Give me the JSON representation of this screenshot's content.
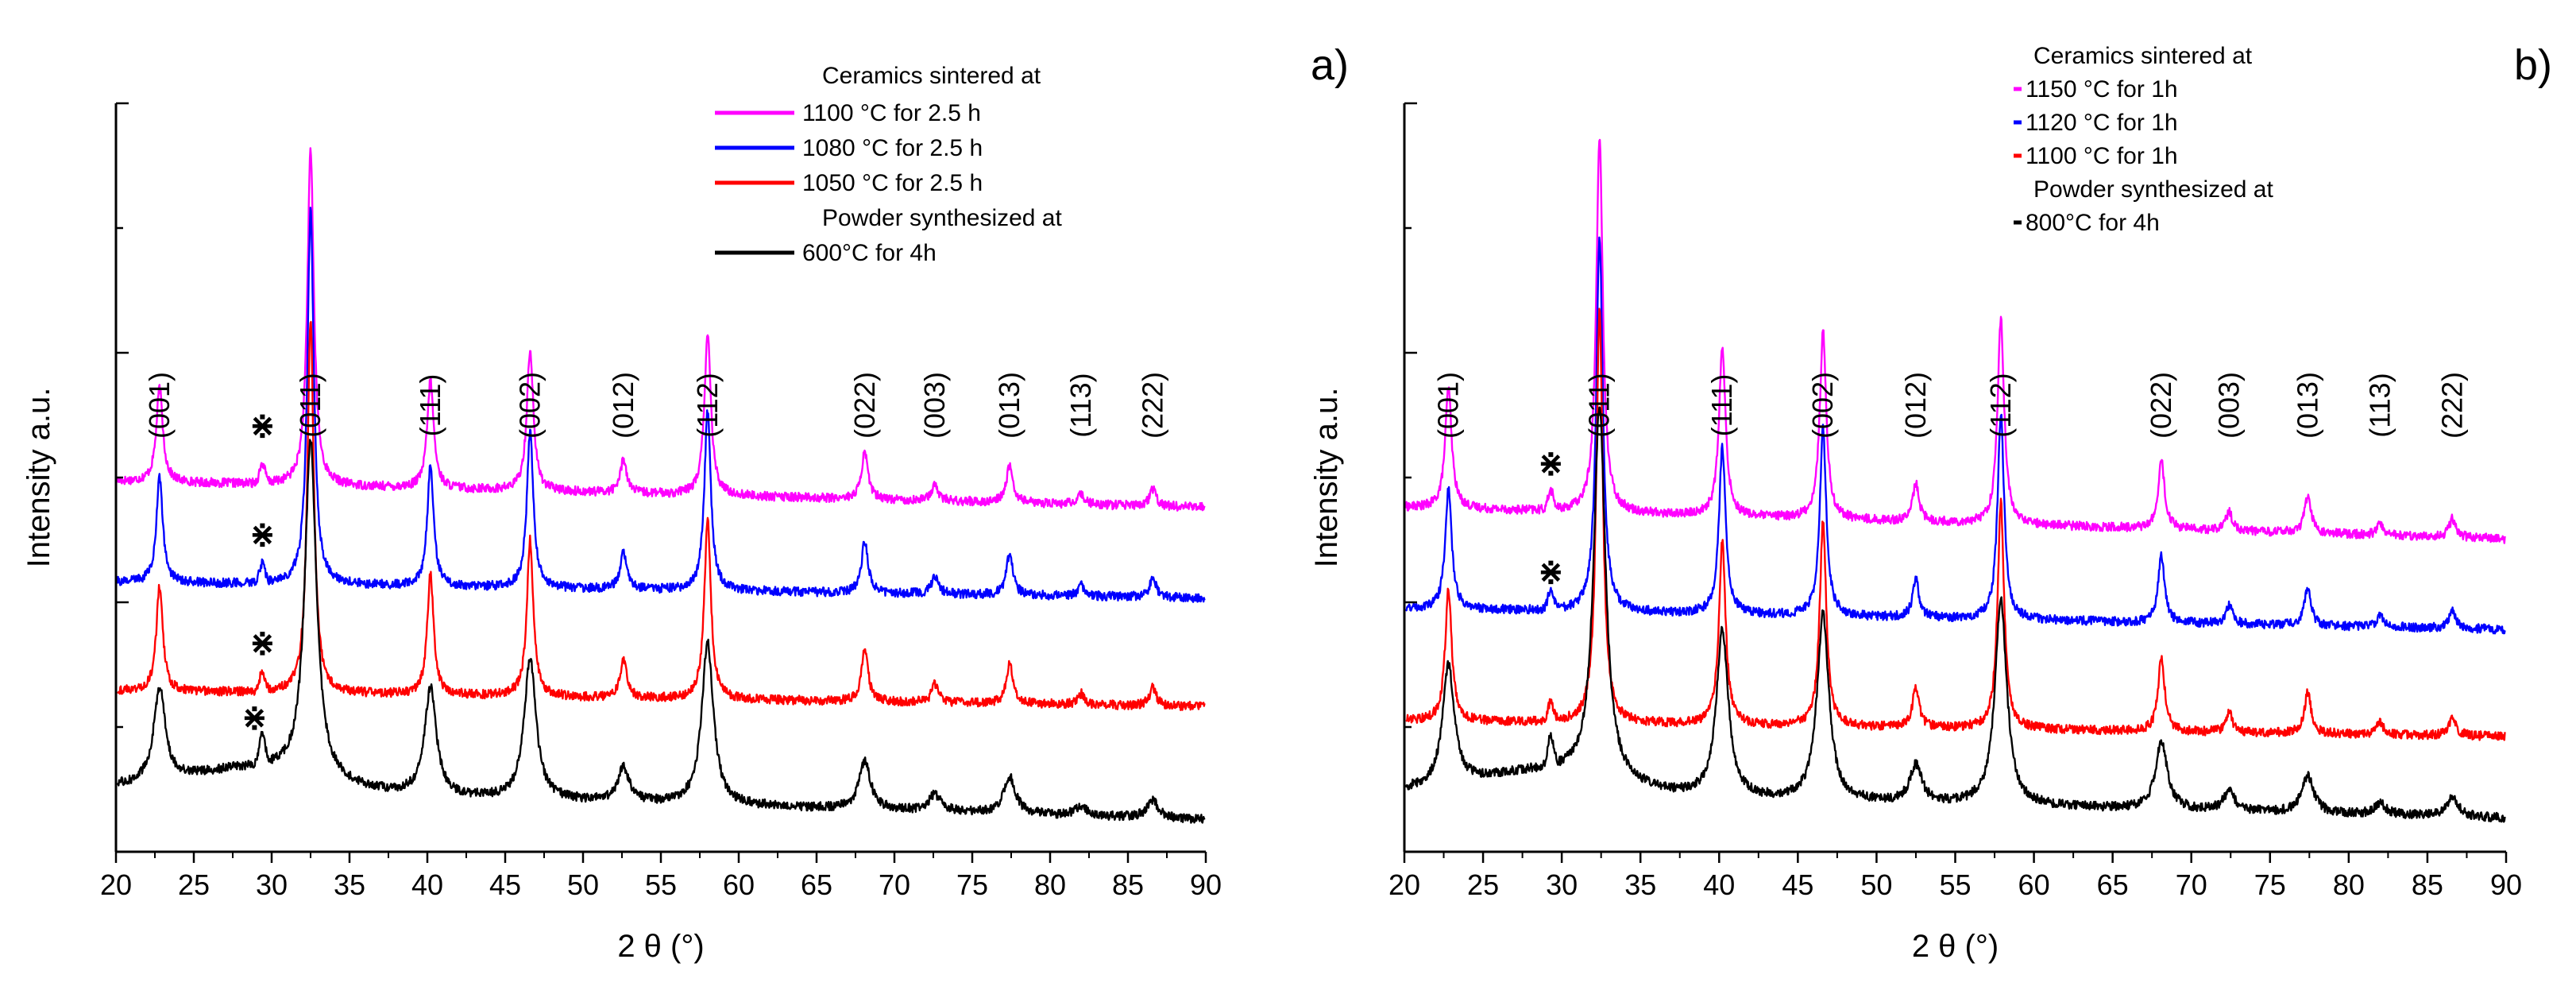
{
  "chart_data": [
    {
      "type": "line",
      "panel_label": "a)",
      "xlabel": "2 θ (°)",
      "ylabel": "Intensity a.u.",
      "xlim": [
        20,
        90
      ],
      "xticks": [
        20,
        25,
        30,
        35,
        40,
        45,
        50,
        55,
        60,
        65,
        70,
        75,
        80,
        85,
        90
      ],
      "legend": {
        "header_sintered": "Ceramics sintered at",
        "header_powder": "Powder synthesized at"
      },
      "peaks": [
        {
          "hkl": "(001)",
          "x": 22.8,
          "rel": 0.28
        },
        {
          "hkl": "(011)",
          "x": 32.5,
          "rel": 1.0
        },
        {
          "hkl": "(111)",
          "x": 40.2,
          "rel": 0.32
        },
        {
          "hkl": "(002)",
          "x": 46.6,
          "rel": 0.42
        },
        {
          "hkl": "(012)",
          "x": 52.6,
          "rel": 0.1
        },
        {
          "hkl": "(112)",
          "x": 58.0,
          "rel": 0.48
        },
        {
          "hkl": "(022)",
          "x": 68.1,
          "rel": 0.14
        },
        {
          "hkl": "(003)",
          "x": 72.6,
          "rel": 0.05
        },
        {
          "hkl": "(013)",
          "x": 77.4,
          "rel": 0.11
        },
        {
          "hkl": "(113)",
          "x": 82.0,
          "rel": 0.03
        },
        {
          "hkl": "(222)",
          "x": 86.6,
          "rel": 0.05
        }
      ],
      "impurity_marker": "⋇",
      "impurity_x": 29.4,
      "series": [
        {
          "name": "1100 °C for 2.5 h",
          "color": "#ff00ff",
          "offset": 0.495,
          "slope": -0.0005,
          "scale": 0.45
        },
        {
          "name": "1080 °C for 2.5 h",
          "color": "#0000ff",
          "offset": 0.36,
          "slope": -0.0003,
          "scale": 0.5
        },
        {
          "name": "1050 °C for 2.5 h",
          "color": "#ff0000",
          "offset": 0.215,
          "slope": -0.0003,
          "scale": 0.5
        },
        {
          "name": "600°C for 4h",
          "color": "#000000",
          "offset": 0.085,
          "slope": -0.0006,
          "scale": 0.45
        }
      ]
    },
    {
      "type": "line",
      "panel_label": "b)",
      "xlabel": "2 θ (°)",
      "ylabel": "Intensity a.u.",
      "xlim": [
        20,
        90
      ],
      "xticks": [
        20,
        25,
        30,
        35,
        40,
        45,
        50,
        55,
        60,
        65,
        70,
        75,
        80,
        85,
        90
      ],
      "legend": {
        "header_sintered": "Ceramics sintered at",
        "header_powder": "Powder synthesized at"
      },
      "peaks": [
        {
          "hkl": "(001)",
          "x": 22.8,
          "rel": 0.32
        },
        {
          "hkl": "(011)",
          "x": 32.4,
          "rel": 1.0
        },
        {
          "hkl": "(111)",
          "x": 40.2,
          "rel": 0.45
        },
        {
          "hkl": "(002)",
          "x": 46.6,
          "rel": 0.5
        },
        {
          "hkl": "(012)",
          "x": 52.5,
          "rel": 0.1
        },
        {
          "hkl": "(112)",
          "x": 57.9,
          "rel": 0.55
        },
        {
          "hkl": "(022)",
          "x": 68.1,
          "rel": 0.18
        },
        {
          "hkl": "(003)",
          "x": 72.4,
          "rel": 0.05
        },
        {
          "hkl": "(013)",
          "x": 77.4,
          "rel": 0.1
        },
        {
          "hkl": "(113)",
          "x": 82.0,
          "rel": 0.03
        },
        {
          "hkl": "(222)",
          "x": 86.6,
          "rel": 0.05
        }
      ],
      "impurity_marker": "⋇",
      "impurity_x": 29.3,
      "series": [
        {
          "name": "1150 °C for 1h",
          "color": "#ff00ff",
          "offset": 0.46,
          "slope": -0.0006,
          "scale": 0.5
        },
        {
          "name": "1120 °C for 1h",
          "color": "#0000ff",
          "offset": 0.325,
          "slope": -0.0004,
          "scale": 0.5
        },
        {
          "name": "1100 °C for 1h",
          "color": "#ff0000",
          "offset": 0.175,
          "slope": -0.0003,
          "scale": 0.55
        },
        {
          "name": "800°C for 4h",
          "color": "#000000",
          "offset": 0.08,
          "slope": -0.0005,
          "scale": 0.5
        }
      ]
    }
  ]
}
